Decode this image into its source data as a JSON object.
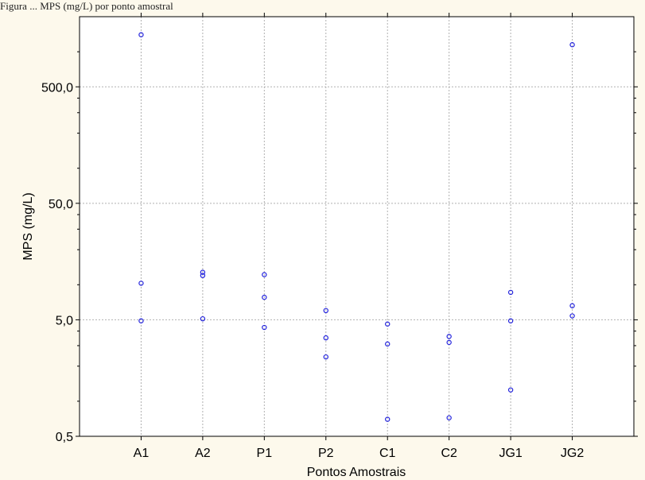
{
  "caption": "Figura ... MPS (mg/L) por ponto amostral",
  "chart_data": {
    "type": "scatter",
    "title": "",
    "xlabel": "Pontos Amostrais",
    "ylabel": "MPS (mg/L)",
    "y_scale": "log",
    "ylim": [
      0.5,
      2000
    ],
    "yticks": [
      0.5,
      5,
      50,
      500
    ],
    "ytick_labels": [
      "0,5",
      "5,0",
      "50,0",
      "500,0"
    ],
    "categories": [
      "A1",
      "A2",
      "P1",
      "P2",
      "C1",
      "C2",
      "JG1",
      "JG2"
    ],
    "grid": true,
    "marker_color": "#2222dd",
    "series": [
      {
        "points": [
          {
            "x": "A1",
            "y": 1400
          },
          {
            "x": "A1",
            "y": 10.3
          },
          {
            "x": "A1",
            "y": 4.9
          },
          {
            "x": "A2",
            "y": 12.8
          },
          {
            "x": "A2",
            "y": 12.0
          },
          {
            "x": "A2",
            "y": 5.1
          },
          {
            "x": "P1",
            "y": 12.2
          },
          {
            "x": "P1",
            "y": 7.8
          },
          {
            "x": "P1",
            "y": 4.3
          },
          {
            "x": "P2",
            "y": 6.0
          },
          {
            "x": "P2",
            "y": 3.5
          },
          {
            "x": "P2",
            "y": 2.4
          },
          {
            "x": "C1",
            "y": 4.6
          },
          {
            "x": "C1",
            "y": 3.1
          },
          {
            "x": "C1",
            "y": 0.7
          },
          {
            "x": "C2",
            "y": 3.6
          },
          {
            "x": "C2",
            "y": 3.2
          },
          {
            "x": "C2",
            "y": 0.72
          },
          {
            "x": "JG1",
            "y": 8.6
          },
          {
            "x": "JG1",
            "y": 4.9
          },
          {
            "x": "JG1",
            "y": 1.25
          },
          {
            "x": "JG2",
            "y": 1150
          },
          {
            "x": "JG2",
            "y": 6.6
          },
          {
            "x": "JG2",
            "y": 5.4
          }
        ]
      }
    ]
  }
}
